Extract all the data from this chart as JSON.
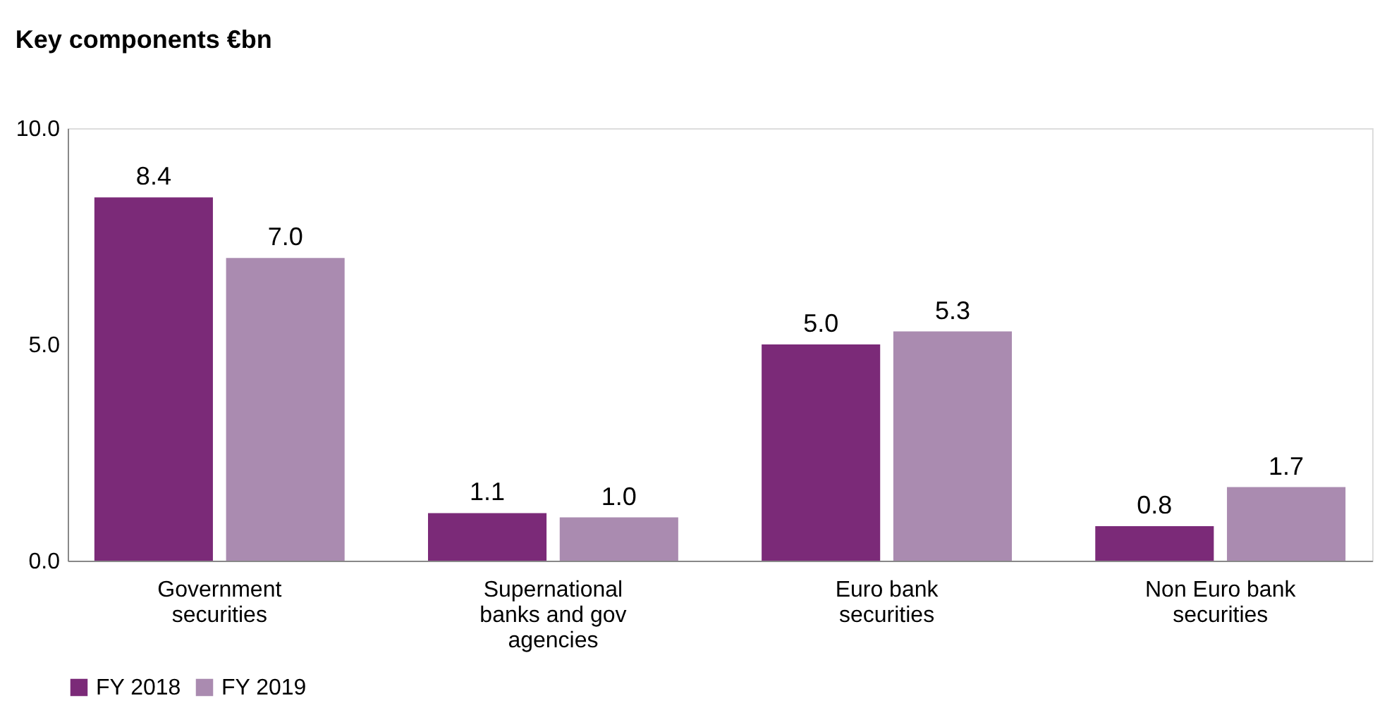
{
  "chart_data": {
    "type": "bar",
    "title": "Key components €bn",
    "categories": [
      "Government securities",
      "Supernational banks and gov agencies",
      "Euro bank securities",
      "Non Euro bank securities"
    ],
    "series": [
      {
        "name": "FY 2018",
        "color": "#7b2a78",
        "values": [
          8.4,
          1.1,
          5.0,
          0.8
        ],
        "value_labels": [
          "8.4",
          "1.1",
          "5.0",
          "0.8"
        ]
      },
      {
        "name": "FY 2019",
        "color": "#aa8bb0",
        "values": [
          7.0,
          1.0,
          5.3,
          1.7
        ],
        "value_labels": [
          "7.0",
          "1.0",
          "5.3",
          "1.7"
        ]
      }
    ],
    "ylim": [
      0,
      10
    ],
    "yticks": [
      {
        "value": 0,
        "label": "0.0"
      },
      {
        "value": 5,
        "label": "5.0"
      },
      {
        "value": 10,
        "label": "10.0"
      }
    ],
    "grid": false,
    "legend": "bottom"
  }
}
